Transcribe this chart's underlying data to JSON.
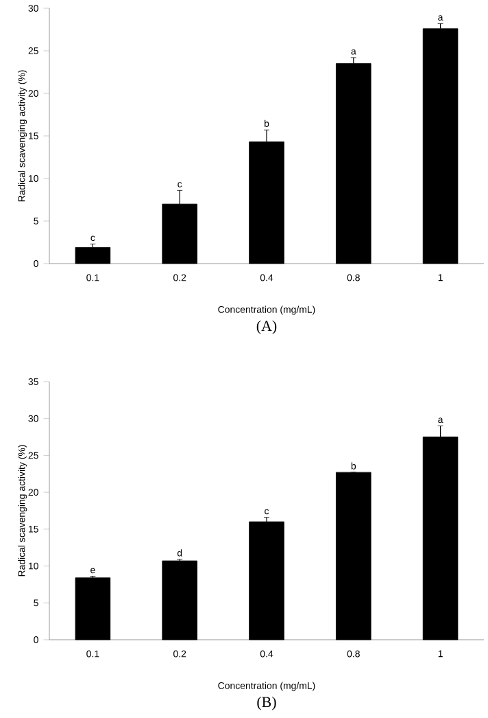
{
  "chart_data": [
    {
      "type": "bar",
      "title": "(A)",
      "xlabel": "Concentration  (mg/mL)",
      "ylabel": "Radical scavenging activity (%)",
      "categories": [
        "0.1",
        "0.2",
        "0.4",
        "0.8",
        "1"
      ],
      "values": [
        1.9,
        7.0,
        14.3,
        23.5,
        27.6
      ],
      "errors": [
        0.4,
        1.6,
        1.4,
        0.7,
        0.6
      ],
      "color": "#000000",
      "ylim": [
        0,
        30
      ],
      "yticks": [
        0,
        5,
        10,
        15,
        20,
        25,
        30
      ],
      "annotations": [
        {
          "text": "c",
          "x": "0.1",
          "y": 2.3
        },
        {
          "text": "c",
          "x": "0.2",
          "y": 8.6
        },
        {
          "text": "b",
          "x": "0.4",
          "y": 15.7
        },
        {
          "text": "a",
          "x": "0.8",
          "y": 24.2
        },
        {
          "text": "a",
          "x": "1",
          "y": 28.2
        }
      ]
    },
    {
      "type": "bar",
      "title": "(B)",
      "xlabel": "Concentration  (mg/mL)",
      "ylabel": "Radical scavenging activity (%)",
      "categories": [
        "0.1",
        "0.2",
        "0.4",
        "0.8",
        "1"
      ],
      "values": [
        8.4,
        10.7,
        16.0,
        22.7,
        27.5
      ],
      "errors": [
        0.2,
        0.2,
        0.6,
        null,
        1.5
      ],
      "color": "#000000",
      "ylim": [
        0,
        35
      ],
      "yticks": [
        0,
        5,
        10,
        15,
        20,
        25,
        30,
        35
      ],
      "annotations": [
        {
          "text": "e",
          "x": "0.1",
          "y": 8.6
        },
        {
          "text": "d",
          "x": "0.2",
          "y": 10.9
        },
        {
          "text": "c",
          "x": "0.4",
          "y": 16.6
        },
        {
          "text": "b",
          "x": "0.8",
          "y": 22.7
        },
        {
          "text": "a",
          "x": "1",
          "y": 29.0
        }
      ]
    }
  ]
}
